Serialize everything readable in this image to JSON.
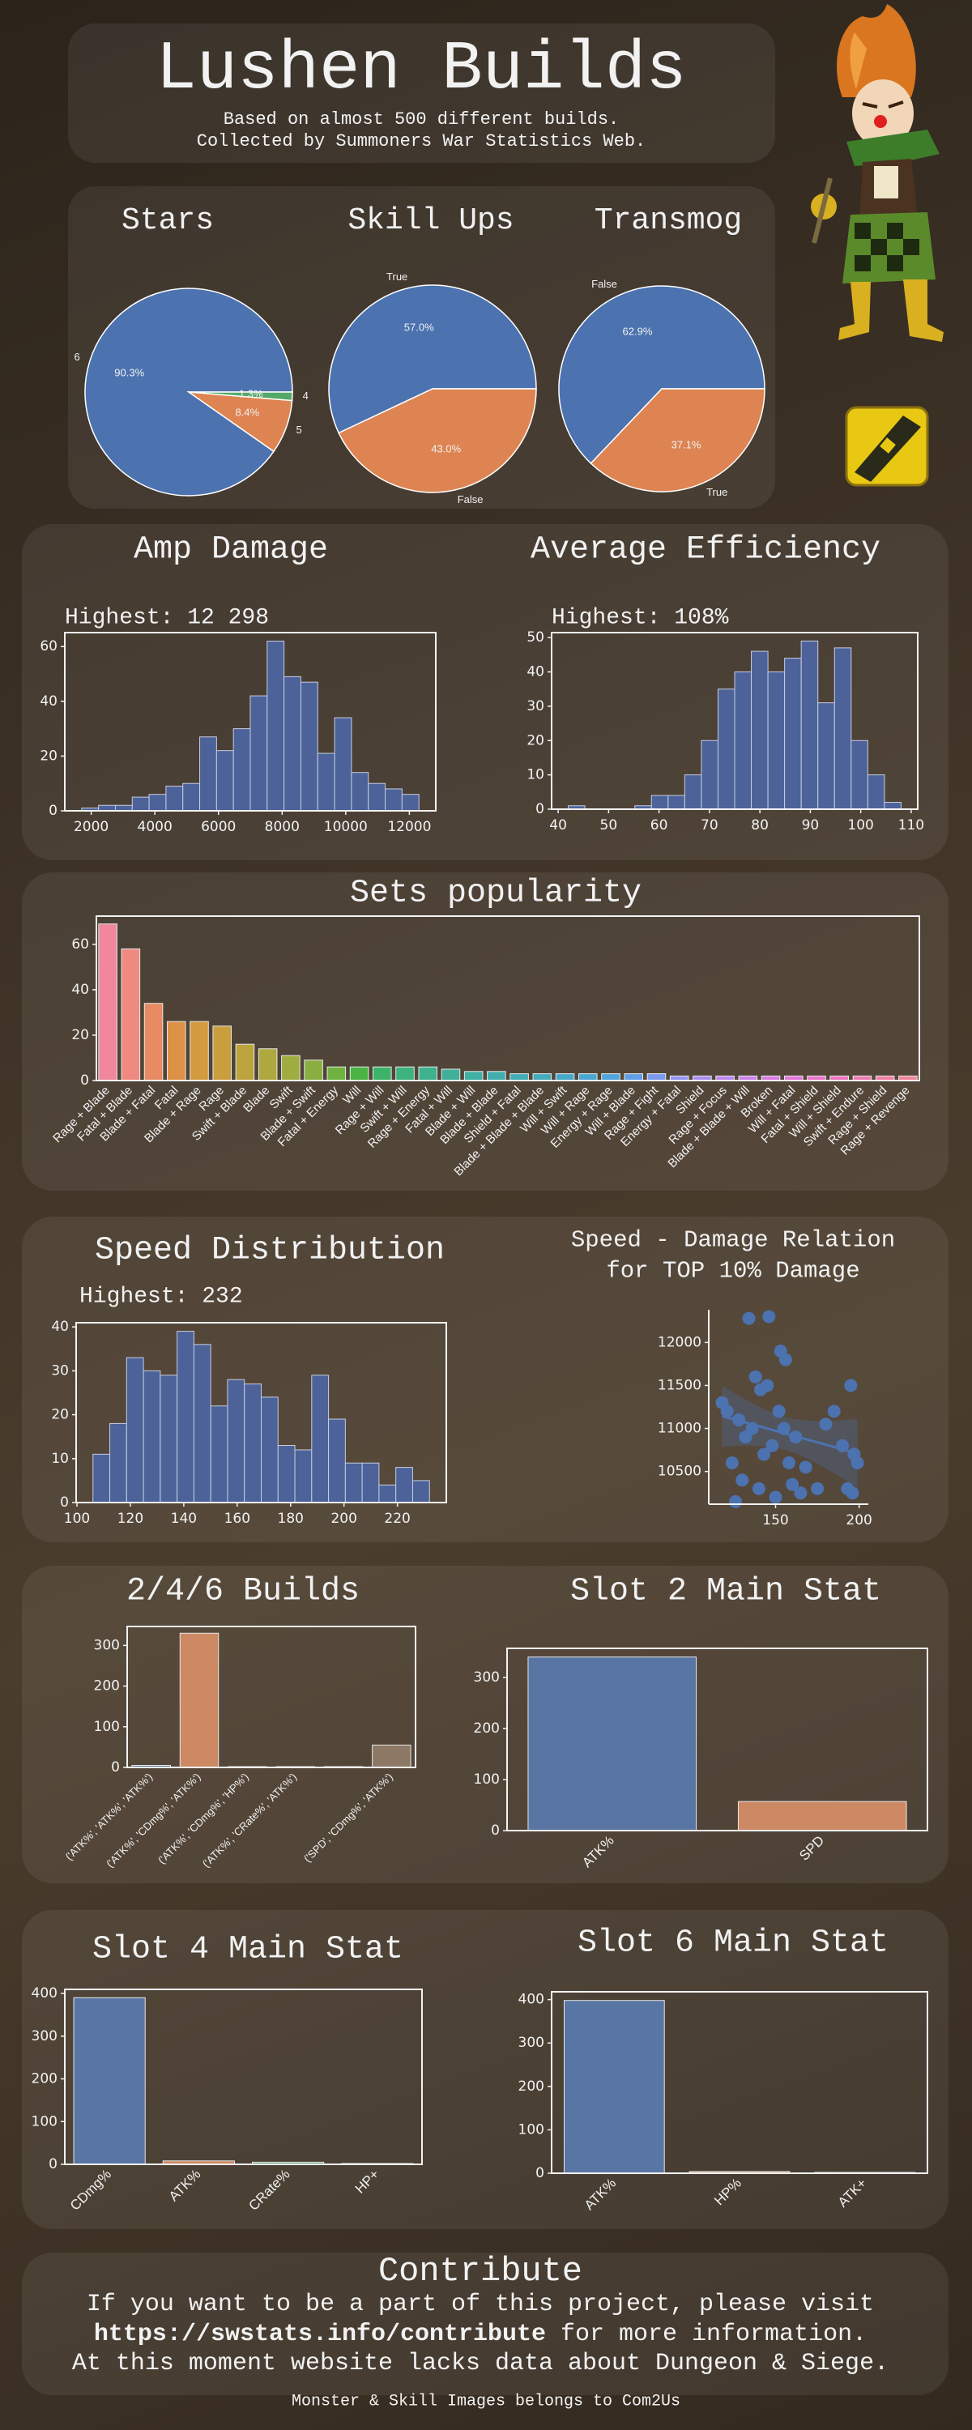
{
  "header": {
    "title": "Lushen Builds",
    "subtitle": [
      "Based on almost 500 different builds.",
      "Collected by Summoners War Statistics Web."
    ]
  },
  "chart_data": [
    {
      "type": "pie",
      "title": "Stars",
      "labels": [
        "6",
        "5",
        "4"
      ],
      "values": [
        90.3,
        8.4,
        1.3
      ],
      "value_labels": [
        "90.3%",
        "8.4%",
        "1.3%"
      ],
      "colors": [
        "#4c72b0",
        "#dd8452",
        "#55a868"
      ]
    },
    {
      "type": "pie",
      "title": "Skill Ups",
      "labels": [
        "True",
        "False"
      ],
      "values": [
        57.0,
        43.0
      ],
      "value_labels": [
        "57.0%",
        "43.0%"
      ],
      "colors": [
        "#4c72b0",
        "#dd8452"
      ]
    },
    {
      "type": "pie",
      "title": "Transmog",
      "labels": [
        "False",
        "True"
      ],
      "values": [
        62.9,
        37.1
      ],
      "value_labels": [
        "62.9%",
        "37.1%"
      ],
      "colors": [
        "#4c72b0",
        "#dd8452"
      ]
    },
    {
      "type": "histogram",
      "title": "Amp Damage",
      "subtitle": "Highest: 12 298",
      "bins": [
        1700,
        2230,
        2760,
        3290,
        3820,
        4350,
        4880,
        5410,
        5940,
        6470,
        7000,
        7530,
        8060,
        8590,
        9120,
        9650,
        10180,
        10710,
        11240,
        11770,
        12300
      ],
      "values": [
        1,
        2,
        2,
        5,
        6,
        9,
        10,
        27,
        22,
        30,
        42,
        62,
        49,
        47,
        21,
        34,
        14,
        10,
        8,
        6
      ],
      "color": "#4c6299",
      "xlim": [
        1170,
        12830
      ],
      "xticks": [
        2000,
        4000,
        6000,
        8000,
        10000,
        12000
      ],
      "ylim": [
        0,
        65.1
      ],
      "yticks": [
        0,
        20,
        40,
        60
      ]
    },
    {
      "type": "histogram",
      "title": "Average Efficiency",
      "subtitle": "Highest: 108%",
      "bins": [
        42,
        45.3,
        48.6,
        51.9,
        55.2,
        58.5,
        61.8,
        65.1,
        68.4,
        71.7,
        75,
        78.3,
        81.6,
        84.9,
        88.2,
        91.5,
        94.8,
        98.1,
        101.4,
        104.7,
        108
      ],
      "values": [
        1,
        0,
        0,
        0,
        1,
        4,
        4,
        10,
        20,
        35,
        40,
        46,
        40,
        44,
        49,
        31,
        47,
        20,
        10,
        2
      ],
      "color": "#4c6299",
      "xlim": [
        38.7,
        111.3
      ],
      "xticks": [
        40,
        50,
        60,
        70,
        80,
        90,
        100,
        110
      ],
      "ylim": [
        0,
        51.45
      ],
      "yticks": [
        0,
        10,
        20,
        30,
        40,
        50
      ]
    },
    {
      "type": "bar",
      "title": "Sets popularity",
      "categories": [
        "Rage + Blade",
        "Fatal + Blade",
        "Blade + Fatal",
        "Fatal",
        "Blade + Rage",
        "Rage",
        "Swift + Blade",
        "Blade",
        "Swift",
        "Blade + Swift",
        "Fatal + Energy",
        "Will",
        "Rage + Will",
        "Swift + Will",
        "Rage + Energy",
        "Fatal + Will",
        "Blade + Will",
        "Blade + Blade",
        "Shield + Fatal",
        "Blade + Blade + Blade",
        "Will + Swift",
        "Will + Rage",
        "Energy + Rage",
        "Will + Blade",
        "Rage + Fight",
        "Energy + Fatal",
        "Shield",
        "Rage + Focus",
        "Blade + Blade + Will",
        "Broken",
        "Will + Fatal",
        "Fatal + Shield",
        "Will + Shield",
        "Swift + Endure",
        "Rage + Shield",
        "Rage + Revenge"
      ],
      "values": [
        69,
        58,
        34,
        26,
        26,
        24,
        16,
        14,
        11,
        9,
        6,
        6,
        6,
        6,
        6,
        5,
        4,
        4,
        3,
        3,
        3,
        3,
        3,
        3,
        3,
        2,
        2,
        2,
        2,
        2,
        2,
        2,
        2,
        2,
        2,
        2
      ],
      "colors": [
        "#f0879c",
        "#ee8a80",
        "#e98b62",
        "#dd9147",
        "#d49a3e",
        "#c99f3e",
        "#bca43f",
        "#aea83f",
        "#9eac40",
        "#8aaf40",
        "#6fb240",
        "#4ab444",
        "#3db36a",
        "#3eb27f",
        "#3fb18e",
        "#40b09a",
        "#40afa4",
        "#41aead",
        "#42adb6",
        "#43acbe",
        "#45aac7",
        "#48a8d1",
        "#50a5dc",
        "#60a0e8",
        "#7b9af0",
        "#9694f2",
        "#ab8ef1",
        "#bd87ef",
        "#cd80ec",
        "#da7ae3",
        "#e375d8",
        "#eb73cc",
        "#ef75bf",
        "#f179b2",
        "#f27ea6",
        "#f28399"
      ],
      "ylim": [
        0,
        72.45
      ],
      "yticks": [
        0,
        20,
        40,
        60
      ]
    },
    {
      "type": "histogram",
      "title": "Speed Distribution",
      "subtitle": "Highest: 232",
      "bins": [
        106,
        112.3,
        118.6,
        124.9,
        131.2,
        137.5,
        143.8,
        150.1,
        156.4,
        162.7,
        169,
        175.3,
        181.6,
        187.9,
        194.2,
        200.5,
        206.8,
        213.1,
        219.4,
        225.7,
        232
      ],
      "values": [
        11,
        18,
        33,
        30,
        29,
        39,
        36,
        22,
        28,
        27,
        24,
        13,
        12,
        29,
        19,
        9,
        9,
        4,
        8,
        5
      ],
      "color": "#4c6299",
      "xlim": [
        99.7,
        238.3
      ],
      "xticks": [
        100,
        120,
        140,
        160,
        180,
        200,
        220
      ],
      "ylim": [
        0,
        40.95
      ],
      "yticks": [
        0,
        10,
        20,
        30,
        40
      ]
    },
    {
      "type": "scatter",
      "title": [
        "Speed - Damage Relation",
        "for TOP 10% Damage"
      ],
      "color": "#4c72b0",
      "x": [
        118,
        121,
        124,
        126,
        128,
        130,
        132,
        134,
        136,
        138,
        140,
        141,
        143,
        145,
        146,
        148,
        150,
        152,
        153,
        155,
        156,
        158,
        160,
        162,
        165,
        168,
        175,
        180,
        185,
        190,
        193,
        195,
        196,
        197,
        199
      ],
      "values": [
        11300,
        11200,
        10600,
        10150,
        11100,
        10400,
        10900,
        12280,
        11000,
        11600,
        10300,
        11450,
        10700,
        11500,
        12300,
        10800,
        10200,
        11200,
        11900,
        11000,
        11800,
        10600,
        10350,
        10900,
        10250,
        10550,
        10300,
        11050,
        11200,
        10800,
        10300,
        11500,
        10250,
        10700,
        10600
      ],
      "xlim": [
        110,
        205.5
      ],
      "xticks": [
        150,
        200
      ],
      "ylim": [
        10120,
        12380
      ],
      "yticks": [
        10500,
        11000,
        11500,
        12000
      ]
    },
    {
      "type": "bar",
      "title": "2/4/6 Builds",
      "categories": [
        "('ATK%', 'ATK%', 'ATK%')",
        "('ATK%', 'CDmg%', 'ATK%')",
        "('ATK%', 'CDmg%', 'HP%')",
        "('ATK%', 'CRate%', 'ATK%')",
        null,
        "('SPD', 'CDmg%', 'ATK%')"
      ],
      "values": [
        5,
        330,
        2,
        2,
        2,
        55
      ],
      "colors": [
        "#5975a4",
        "#cc8963",
        "#5f9e6e",
        "#b55d60",
        "#857aab",
        "#8d7866"
      ],
      "ylim": [
        0,
        346.5
      ],
      "yticks": [
        0,
        100,
        200,
        300
      ]
    },
    {
      "type": "bar",
      "title": "Slot 2 Main Stat",
      "categories": [
        "ATK%",
        "SPD"
      ],
      "values": [
        340,
        57
      ],
      "colors": [
        "#5975a4",
        "#cc8963"
      ],
      "ylim": [
        0,
        357
      ],
      "yticks": [
        0,
        100,
        200,
        300
      ]
    },
    {
      "type": "bar",
      "title": "Slot 4 Main Stat",
      "categories": [
        "CDmg%",
        "ATK%",
        "CRate%",
        "HP+"
      ],
      "values": [
        390,
        8,
        5,
        2
      ],
      "colors": [
        "#5975a4",
        "#cc8963",
        "#5f9e6e",
        "#b55d60"
      ],
      "ylim": [
        0,
        409.5
      ],
      "yticks": [
        0,
        100,
        200,
        300,
        400
      ]
    },
    {
      "type": "bar",
      "title": "Slot 6 Main Stat",
      "categories": [
        "ATK%",
        "HP%",
        "ATK+"
      ],
      "values": [
        398,
        4,
        2
      ],
      "colors": [
        "#5975a4",
        "#cc8963",
        "#5f9e6e"
      ],
      "ylim": [
        0,
        418
      ],
      "yticks": [
        0,
        100,
        200,
        300,
        400
      ]
    }
  ],
  "footer": {
    "title": "Contribute",
    "line1": "If you want to be a part of this project, please visit",
    "link": "https://swstats.info/contribute",
    "line2": "for more information.",
    "line3": "At this moment website lacks data about Dungeon & Siege.",
    "credit": "Monster & Skill Images belongs to Com2Us"
  }
}
